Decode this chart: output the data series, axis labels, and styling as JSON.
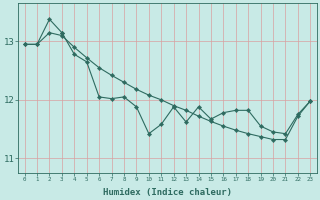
{
  "xlabel": "Humidex (Indice chaleur)",
  "bg_color": "#c8eae6",
  "line_color": "#2e6b60",
  "grid_color": "#d9a0a0",
  "upper_line_x": [
    0,
    1,
    2,
    3,
    4,
    5,
    6,
    7,
    8,
    9,
    10,
    11,
    12,
    13,
    14,
    15,
    16,
    17,
    18,
    19,
    20,
    21,
    22,
    23
  ],
  "upper_line_y": [
    12.95,
    12.95,
    13.15,
    13.1,
    12.9,
    12.72,
    12.55,
    12.42,
    12.3,
    12.18,
    12.08,
    12.0,
    11.9,
    11.82,
    11.72,
    11.63,
    11.55,
    11.48,
    11.42,
    11.37,
    11.32,
    11.32,
    11.72,
    11.98
  ],
  "peak_line_x": [
    0,
    1,
    2,
    3
  ],
  "peak_line_y": [
    12.95,
    12.95,
    13.38,
    13.15
  ],
  "zigzag_line_x": [
    3,
    4,
    5,
    6,
    7,
    8,
    9,
    10,
    11,
    12,
    13,
    14,
    15,
    16,
    17,
    18,
    19,
    20,
    21,
    22,
    23
  ],
  "zigzag_line_y": [
    13.15,
    12.78,
    12.65,
    12.05,
    12.02,
    12.05,
    11.88,
    11.42,
    11.58,
    11.88,
    11.62,
    11.88,
    11.67,
    11.78,
    11.82,
    11.82,
    11.55,
    11.45,
    11.42,
    11.75,
    11.98
  ],
  "ylim": [
    10.75,
    13.65
  ],
  "yticks": [
    11,
    12,
    13
  ],
  "xlim": [
    -0.5,
    23.5
  ],
  "xticks": [
    0,
    1,
    2,
    3,
    4,
    5,
    6,
    7,
    8,
    9,
    10,
    11,
    12,
    13,
    14,
    15,
    16,
    17,
    18,
    19,
    20,
    21,
    22,
    23
  ],
  "figsize": [
    3.2,
    2.0
  ],
  "dpi": 100
}
